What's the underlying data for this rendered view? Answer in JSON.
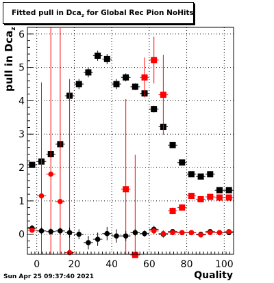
{
  "chart_data": {
    "type": "scatter",
    "title": "Fitted pull in Dca",
    "title_sub": "z",
    "title_rest": " for Global Rec Pion NoHits",
    "ylabel": "pull in Dca",
    "ylabel_sub": "z",
    "xlabel": "Quality",
    "xlim": [
      -5,
      105
    ],
    "ylim": [
      -0.6,
      6.2
    ],
    "xticks": [
      0,
      20,
      40,
      60,
      80,
      100
    ],
    "yticks": [
      0,
      1,
      2,
      3,
      4,
      5,
      6
    ],
    "grid": true,
    "series": [
      {
        "color": "#000000",
        "marker": "square",
        "points": [
          {
            "x": -2.5,
            "y": 2.08,
            "err": 0.08
          },
          {
            "x": 2.5,
            "y": 2.18,
            "err": 0.1
          },
          {
            "x": 7.5,
            "y": 2.4,
            "err": 0.1
          },
          {
            "x": 12.5,
            "y": 2.7,
            "err": 0.1
          },
          {
            "x": 17.5,
            "y": 4.15,
            "err": 0.15
          },
          {
            "x": 22.5,
            "y": 4.5,
            "err": 0.15
          },
          {
            "x": 27.5,
            "y": 4.85,
            "err": 0.15
          },
          {
            "x": 32.5,
            "y": 5.35,
            "err": 0.15
          },
          {
            "x": 37.5,
            "y": 5.25,
            "err": 0.15
          },
          {
            "x": 42.5,
            "y": 4.5,
            "err": 0.15
          },
          {
            "x": 47.5,
            "y": 4.7,
            "err": 0.12
          },
          {
            "x": 52.5,
            "y": 4.42,
            "err": 0.1
          },
          {
            "x": 57.5,
            "y": 4.22,
            "err": 0.1
          },
          {
            "x": 62.5,
            "y": 3.75,
            "err": 0.1
          },
          {
            "x": 67.5,
            "y": 3.22,
            "err": 0.1
          },
          {
            "x": 72.5,
            "y": 2.67,
            "err": 0.06
          },
          {
            "x": 77.5,
            "y": 2.15,
            "err": 0.05
          },
          {
            "x": 82.5,
            "y": 1.8,
            "err": 0.05
          },
          {
            "x": 87.5,
            "y": 1.73,
            "err": 0.05
          },
          {
            "x": 92.5,
            "y": 1.8,
            "err": 0.05
          },
          {
            "x": 97.5,
            "y": 1.32,
            "err": 0.05
          },
          {
            "x": 102.5,
            "y": 1.32,
            "err": 0.05
          }
        ]
      },
      {
        "color": "#ff0000",
        "marker": "square",
        "points": [
          {
            "x": 62.5,
            "y": 5.22,
            "err": 0.7
          },
          {
            "x": 57.5,
            "y": 4.7,
            "err": 0.6
          },
          {
            "x": 67.5,
            "y": 4.18,
            "err": 1.2
          },
          {
            "x": 47.5,
            "y": 1.35,
            "err": 2.7
          },
          {
            "x": 52.5,
            "y": -0.62,
            "err": 3.0
          },
          {
            "x": 72.5,
            "y": 0.7,
            "err": 0.1
          },
          {
            "x": 77.5,
            "y": 0.8,
            "err": 0.1
          },
          {
            "x": 82.5,
            "y": 1.15,
            "err": 0.05
          },
          {
            "x": 87.5,
            "y": 1.05,
            "err": 0.05
          },
          {
            "x": 92.5,
            "y": 1.12,
            "err": 0.05
          },
          {
            "x": 97.5,
            "y": 1.1,
            "err": 0.05
          },
          {
            "x": 102.5,
            "y": 1.1,
            "err": 0.05
          }
        ]
      },
      {
        "color": "#ff0000",
        "marker": "circle",
        "points": [
          {
            "x": 2.5,
            "y": 1.15,
            "err": 3.4
          },
          {
            "x": 7.5,
            "y": 1.8,
            "err": 4.4
          },
          {
            "x": 12.5,
            "y": 0.98,
            "err": 5.2
          },
          {
            "x": 17.5,
            "y": -0.55,
            "err": 5.2
          }
        ]
      },
      {
        "color": "#000000",
        "marker": "circle",
        "points": [
          {
            "x": -2.5,
            "y": 0.18,
            "err": 0.1
          },
          {
            "x": 2.5,
            "y": 0.1,
            "err": 0.1
          },
          {
            "x": 7.5,
            "y": 0.08,
            "err": 0.1
          },
          {
            "x": 12.5,
            "y": 0.1,
            "err": 0.1
          },
          {
            "x": 17.5,
            "y": 0.05,
            "err": 0.15
          },
          {
            "x": 22.5,
            "y": 0.0,
            "err": 0.15
          },
          {
            "x": 27.5,
            "y": -0.25,
            "err": 0.2
          },
          {
            "x": 32.5,
            "y": -0.15,
            "err": 0.2
          },
          {
            "x": 37.5,
            "y": 0.02,
            "err": 0.2
          },
          {
            "x": 42.5,
            "y": -0.05,
            "err": 0.2
          },
          {
            "x": 47.5,
            "y": -0.05,
            "err": 0.15
          },
          {
            "x": 52.5,
            "y": 0.05,
            "err": 0.1
          },
          {
            "x": 57.5,
            "y": 0.02,
            "err": 0.1
          },
          {
            "x": 62.5,
            "y": 0.15,
            "err": 0.1
          },
          {
            "x": 67.5,
            "y": 0.0,
            "err": 0.1
          },
          {
            "x": 72.5,
            "y": 0.08,
            "err": 0.05
          },
          {
            "x": 77.5,
            "y": 0.05,
            "err": 0.05
          },
          {
            "x": 82.5,
            "y": 0.05,
            "err": 0.05
          },
          {
            "x": 87.5,
            "y": 0.0,
            "err": 0.05
          },
          {
            "x": 92.5,
            "y": 0.08,
            "err": 0.05
          },
          {
            "x": 97.5,
            "y": 0.05,
            "err": 0.05
          },
          {
            "x": 102.5,
            "y": 0.05,
            "err": 0.05
          }
        ]
      },
      {
        "color": "#ff0000",
        "marker": "circle",
        "points": [
          {
            "x": -2.5,
            "y": 0.12,
            "err": 0.05
          },
          {
            "x": 62.5,
            "y": 0.1,
            "err": 0.1
          },
          {
            "x": 67.5,
            "y": 0.02,
            "err": 0.1
          },
          {
            "x": 72.5,
            "y": 0.05,
            "err": 0.05
          },
          {
            "x": 77.5,
            "y": 0.05,
            "err": 0.05
          },
          {
            "x": 82.5,
            "y": 0.05,
            "err": 0.05
          },
          {
            "x": 87.5,
            "y": -0.02,
            "err": 0.05
          },
          {
            "x": 92.5,
            "y": 0.05,
            "err": 0.05
          },
          {
            "x": 97.5,
            "y": 0.05,
            "err": 0.05
          },
          {
            "x": 102.5,
            "y": 0.08,
            "err": 0.05
          }
        ]
      }
    ]
  },
  "footer": {
    "timestamp": "Sun Apr 25 09:37:40 2021"
  }
}
